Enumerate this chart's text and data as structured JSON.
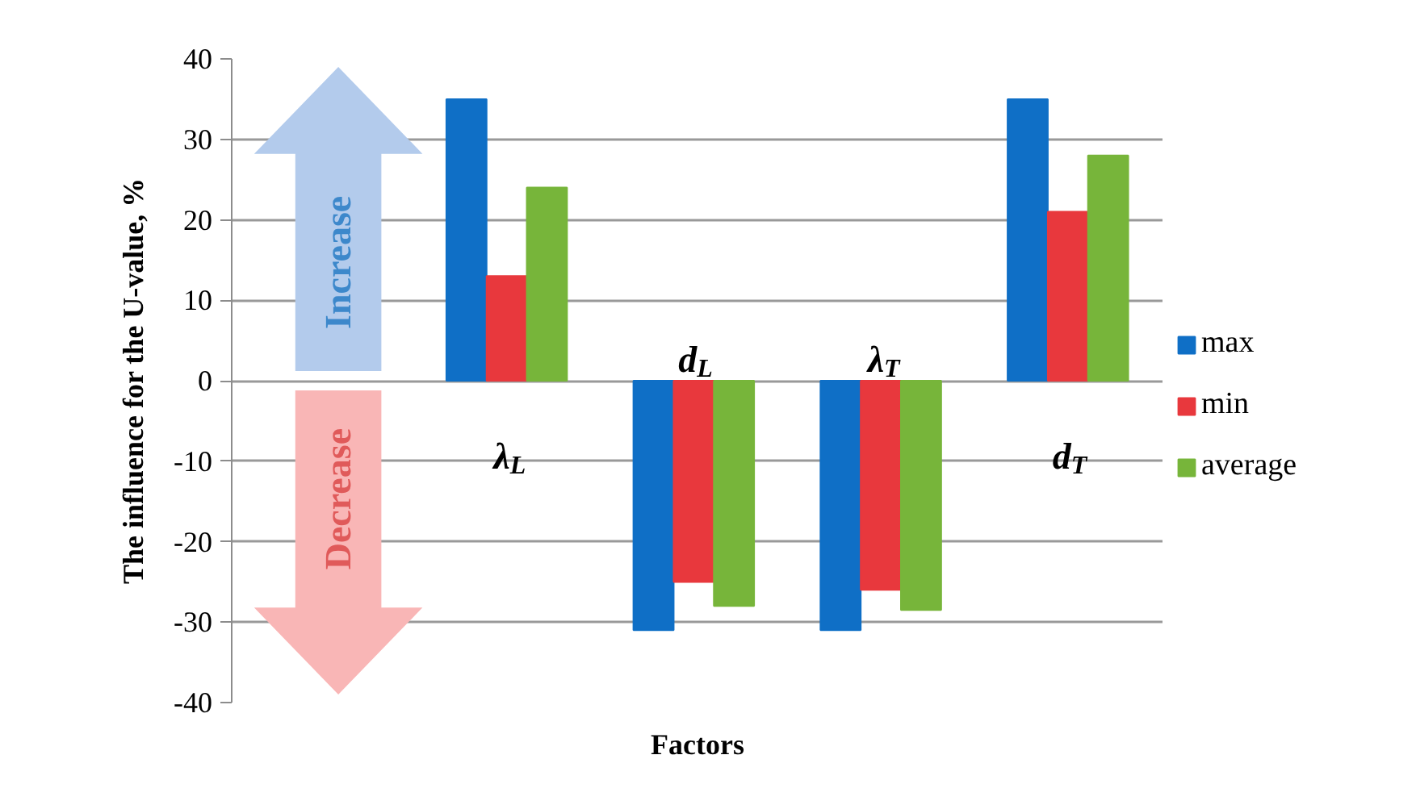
{
  "chart_data": {
    "type": "bar",
    "xlabel": "Factors",
    "ylabel": "The influence for the U-value, %",
    "categories": [
      "λ$_{L}$",
      "d$_{L}$",
      "λ$_{T}$",
      "d$_{T}$"
    ],
    "series": [
      {
        "name": "max",
        "color": "#0f6fc6",
        "values": [
          35,
          -31,
          -31,
          35
        ]
      },
      {
        "name": "min",
        "color": "#e8383d",
        "values": [
          13,
          -25,
          -26,
          21
        ]
      },
      {
        "name": "average",
        "color": "#77b53a",
        "values": [
          24,
          -28,
          -28.5,
          28
        ]
      }
    ],
    "ylim": [
      -40,
      40
    ],
    "yticks": [
      -40,
      -30,
      -20,
      -10,
      0,
      10,
      20,
      30,
      40
    ],
    "grid": "y",
    "legend": "right",
    "annotations": [
      "Increase",
      "Decrease"
    ]
  }
}
